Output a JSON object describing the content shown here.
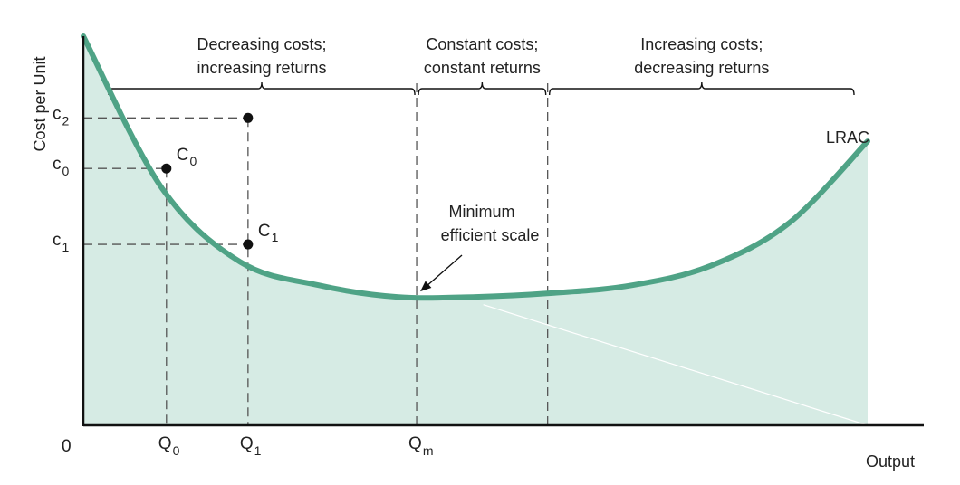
{
  "chart_data": {
    "type": "line",
    "title": "",
    "xlabel": "Output",
    "ylabel": "Cost per Unit",
    "origin_label": "0",
    "grid": false,
    "legend": "none",
    "colors": {
      "curve": "#4fa386",
      "fill": "#d6ebe4",
      "guides": "#555555",
      "axis": "#111111"
    },
    "series": [
      {
        "name": "LRAC",
        "x": [
          0.0,
          0.1,
          0.2,
          0.3,
          0.4,
          0.5,
          0.6,
          0.7,
          0.8,
          0.9,
          1.0
        ],
        "y": [
          1.0,
          0.61,
          0.42,
          0.36,
          0.33,
          0.33,
          0.34,
          0.36,
          0.41,
          0.52,
          0.73
        ]
      }
    ],
    "x_ticks": [
      {
        "key": "q0",
        "x": 0.106,
        "main": "Q",
        "sub": "0"
      },
      {
        "key": "q1",
        "x": 0.21,
        "main": "Q",
        "sub": "1"
      },
      {
        "key": "qm",
        "x": 0.425,
        "main": "Q",
        "sub": "m"
      }
    ],
    "y_ticks": [
      {
        "key": "c2",
        "y": 0.79,
        "main": "c",
        "sub": "2"
      },
      {
        "key": "c0",
        "y": 0.66,
        "main": "c",
        "sub": "0"
      },
      {
        "key": "c1",
        "y": 0.465,
        "main": "c",
        "sub": "1"
      }
    ],
    "points": [
      {
        "key": "p_c2",
        "x": 0.21,
        "y": 0.79,
        "label_main": "",
        "label_sub": ""
      },
      {
        "key": "p_c0",
        "x": 0.106,
        "y": 0.66,
        "label_main": "C",
        "label_sub": "0"
      },
      {
        "key": "p_c1",
        "x": 0.21,
        "y": 0.465,
        "label_main": "C",
        "label_sub": "1"
      }
    ],
    "regions": [
      {
        "key": "decreasing",
        "x_start": 0.03,
        "x_end": 0.425,
        "line1": "Decreasing costs;",
        "line2": "increasing returns"
      },
      {
        "key": "constant",
        "x_start": 0.425,
        "x_end": 0.592,
        "line1": "Constant costs;",
        "line2": "constant returns"
      },
      {
        "key": "increasing",
        "x_start": 0.592,
        "x_end": 0.985,
        "line1": "Increasing costs;",
        "line2": "decreasing returns"
      }
    ],
    "boundaries_x": [
      0.425,
      0.592
    ],
    "annotations": [
      {
        "key": "min_scale",
        "line1": "Minimum",
        "line2": "efficient scale",
        "target_x": 0.425,
        "target_y": 0.33
      },
      {
        "key": "lrac_label",
        "text": "LRAC"
      }
    ]
  }
}
